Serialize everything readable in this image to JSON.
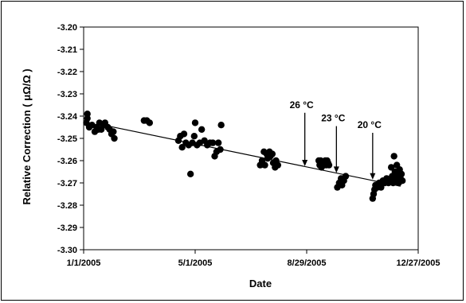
{
  "chart_data": {
    "type": "scatter",
    "title": "",
    "xlabel": "Date",
    "ylabel": "Relative Correction ( μΩ/Ω )",
    "x_ticks": [
      "1/1/2005",
      "5/1/2005",
      "8/29/2005",
      "12/27/2005"
    ],
    "y_ticks": [
      "-3.20",
      "-3.21",
      "-3.22",
      "-3.23",
      "-3.24",
      "-3.25",
      "-3.26",
      "-3.27",
      "-3.28",
      "-3.29",
      "-3.30"
    ],
    "xlim": [
      "2005-01-01",
      "2005-12-27"
    ],
    "ylim": [
      -3.3,
      -3.2
    ],
    "grid": false,
    "legend": "none",
    "marker_color": "#000000",
    "trendline": {
      "start": [
        "2005-01-22",
        -3.244
      ],
      "end": [
        "2005-12-08",
        -3.2715
      ]
    },
    "annotations": [
      {
        "label": "26 °C",
        "x": "2005-08-27",
        "arrow_top": -3.2385,
        "arrow_bottom": -3.2625
      },
      {
        "label": "23 °C",
        "x": "2005-09-30",
        "arrow_top": -3.2445,
        "arrow_bottom": -3.2655
      },
      {
        "label": "20 °C",
        "x": "2005-11-08",
        "arrow_top": -3.2475,
        "arrow_bottom": -3.2685
      }
    ],
    "points": [
      [
        "2005-01-05",
        -3.239
      ],
      [
        "2005-01-05",
        -3.241
      ],
      [
        "2005-01-04",
        -3.243
      ],
      [
        "2005-01-07",
        -3.245
      ],
      [
        "2005-01-10",
        -3.244
      ],
      [
        "2005-01-13",
        -3.247
      ],
      [
        "2005-01-15",
        -3.245
      ],
      [
        "2005-01-17",
        -3.246
      ],
      [
        "2005-01-18",
        -3.243
      ],
      [
        "2005-01-20",
        -3.246
      ],
      [
        "2005-01-22",
        -3.244
      ],
      [
        "2005-01-24",
        -3.243
      ],
      [
        "2005-01-27",
        -3.245
      ],
      [
        "2005-01-29",
        -3.246
      ],
      [
        "2005-01-31",
        -3.248
      ],
      [
        "2005-02-02",
        -3.247
      ],
      [
        "2005-02-03",
        -3.25
      ],
      [
        "2005-03-07",
        -3.242
      ],
      [
        "2005-03-10",
        -3.242
      ],
      [
        "2005-03-13",
        -3.243
      ],
      [
        "2005-04-13",
        -3.251
      ],
      [
        "2005-04-15",
        -3.249
      ],
      [
        "2005-04-17",
        -3.254
      ],
      [
        "2005-04-19",
        -3.248
      ],
      [
        "2005-04-21",
        -3.252
      ],
      [
        "2005-04-24",
        -3.253
      ],
      [
        "2005-04-26",
        -3.266
      ],
      [
        "2005-04-28",
        -3.252
      ],
      [
        "2005-04-30",
        -3.249
      ],
      [
        "2005-05-01",
        -3.243
      ],
      [
        "2005-05-03",
        -3.253
      ],
      [
        "2005-05-06",
        -3.252
      ],
      [
        "2005-05-08",
        -3.246
      ],
      [
        "2005-05-11",
        -3.251
      ],
      [
        "2005-05-14",
        -3.253
      ],
      [
        "2005-05-17",
        -3.252
      ],
      [
        "2005-05-20",
        -3.252
      ],
      [
        "2005-05-22",
        -3.258
      ],
      [
        "2005-05-24",
        -3.256
      ],
      [
        "2005-05-26",
        -3.252
      ],
      [
        "2005-05-28",
        -3.255
      ],
      [
        "2005-05-29",
        -3.244
      ],
      [
        "2005-07-10",
        -3.262
      ],
      [
        "2005-07-12",
        -3.26
      ],
      [
        "2005-07-14",
        -3.256
      ],
      [
        "2005-07-15",
        -3.262
      ],
      [
        "2005-07-17",
        -3.257
      ],
      [
        "2005-07-18",
        -3.259
      ],
      [
        "2005-07-20",
        -3.256
      ],
      [
        "2005-07-21",
        -3.258
      ],
      [
        "2005-07-23",
        -3.257
      ],
      [
        "2005-07-24",
        -3.261
      ],
      [
        "2005-07-26",
        -3.263
      ],
      [
        "2005-07-27",
        -3.26
      ],
      [
        "2005-07-29",
        -3.262
      ],
      [
        "2005-09-11",
        -3.26
      ],
      [
        "2005-09-12",
        -3.262
      ],
      [
        "2005-09-13",
        -3.26
      ],
      [
        "2005-09-14",
        -3.263
      ],
      [
        "2005-09-15",
        -3.261
      ],
      [
        "2005-09-16",
        -3.262
      ],
      [
        "2005-09-17",
        -3.261
      ],
      [
        "2005-09-18",
        -3.26
      ],
      [
        "2005-09-19",
        -3.262
      ],
      [
        "2005-09-20",
        -3.26
      ],
      [
        "2005-09-21",
        -3.261
      ],
      [
        "2005-09-22",
        -3.262
      ],
      [
        "2005-10-01",
        -3.272
      ],
      [
        "2005-10-03",
        -3.27
      ],
      [
        "2005-10-05",
        -3.268
      ],
      [
        "2005-10-06",
        -3.271
      ],
      [
        "2005-10-08",
        -3.269
      ],
      [
        "2005-10-10",
        -3.267
      ],
      [
        "2005-11-08",
        -3.277
      ],
      [
        "2005-11-09",
        -3.275
      ],
      [
        "2005-11-10",
        -3.273
      ],
      [
        "2005-11-11",
        -3.271
      ],
      [
        "2005-11-13",
        -3.272
      ],
      [
        "2005-11-15",
        -3.27
      ],
      [
        "2005-11-17",
        -3.272
      ],
      [
        "2005-11-19",
        -3.269
      ],
      [
        "2005-11-21",
        -3.27
      ],
      [
        "2005-11-23",
        -3.268
      ],
      [
        "2005-11-25",
        -3.27
      ],
      [
        "2005-11-27",
        -3.269
      ],
      [
        "2005-11-28",
        -3.263
      ],
      [
        "2005-11-29",
        -3.267
      ],
      [
        "2005-11-30",
        -3.27
      ],
      [
        "2005-12-01",
        -3.258
      ],
      [
        "2005-12-02",
        -3.265
      ],
      [
        "2005-12-03",
        -3.268
      ],
      [
        "2005-12-04",
        -3.262
      ],
      [
        "2005-12-05",
        -3.266
      ],
      [
        "2005-12-06",
        -3.27
      ],
      [
        "2005-12-07",
        -3.264
      ],
      [
        "2005-12-08",
        -3.268
      ],
      [
        "2005-12-09",
        -3.266
      ],
      [
        "2005-12-10",
        -3.269
      ]
    ]
  }
}
